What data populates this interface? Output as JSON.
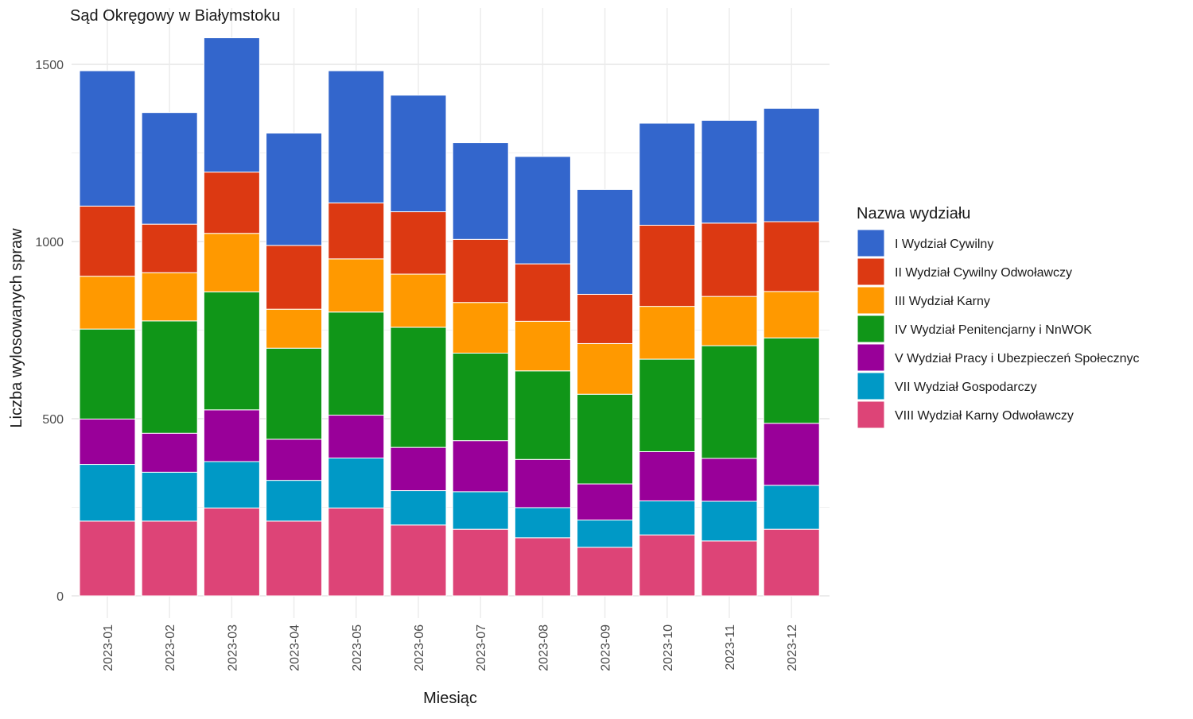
{
  "chart_data": {
    "type": "bar",
    "stacked": true,
    "title": "Sąd Okręgowy w Białymstoku",
    "xlabel": "Miesiąc",
    "ylabel": "Liczba wylosowanych spraw",
    "ylim": [
      0,
      1600
    ],
    "yticks": [
      0,
      500,
      1000,
      1500
    ],
    "grid": true,
    "legend_position": "right",
    "legend_title": "Nazwa wydziału",
    "categories": [
      "2023-01",
      "2023-02",
      "2023-03",
      "2023-04",
      "2023-05",
      "2023-06",
      "2023-07",
      "2023-08",
      "2023-09",
      "2023-10",
      "2023-11",
      "2023-12"
    ],
    "series": [
      {
        "name": "VIII Wydział Karny Odwoławczy",
        "color": "#DD4477",
        "values": [
          211,
          211,
          248,
          211,
          248,
          200,
          188,
          164,
          137,
          172,
          155,
          188
        ]
      },
      {
        "name": "VII Wydział Gospodarczy",
        "color": "#0099C6",
        "values": [
          160,
          138,
          131,
          115,
          141,
          97,
          106,
          85,
          77,
          96,
          112,
          124
        ]
      },
      {
        "name": "V Wydział Pracy i Ubezpieczeń Społecznyc",
        "color": "#990099",
        "values": [
          128,
          110,
          146,
          116,
          121,
          122,
          144,
          136,
          102,
          139,
          121,
          175
        ]
      },
      {
        "name": "IV Wydział Penitencjarny i NnWOK",
        "color": "#109618",
        "values": [
          254,
          317,
          333,
          257,
          291,
          339,
          247,
          250,
          253,
          261,
          318,
          241
        ]
      },
      {
        "name": "III Wydział Karny",
        "color": "#FF9900",
        "values": [
          149,
          136,
          165,
          110,
          150,
          150,
          143,
          140,
          143,
          149,
          139,
          131
        ]
      },
      {
        "name": "II Wydział Cywilny Odwoławczy",
        "color": "#DC3912",
        "values": [
          198,
          137,
          173,
          180,
          158,
          176,
          178,
          162,
          139,
          229,
          207,
          197
        ]
      },
      {
        "name": "I Wydział Cywilny",
        "color": "#3366CC",
        "values": [
          382,
          315,
          379,
          317,
          373,
          329,
          273,
          303,
          296,
          288,
          290,
          320
        ]
      }
    ]
  }
}
